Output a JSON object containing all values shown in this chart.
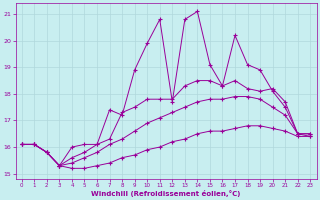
{
  "xlabel": "Windchill (Refroidissement éolien,°C)",
  "background_color": "#c8eef0",
  "grid_color": "#b0d8dc",
  "line_color": "#990099",
  "xlim": [
    -0.5,
    23.5
  ],
  "ylim": [
    14.8,
    21.4
  ],
  "xticks": [
    0,
    1,
    2,
    3,
    4,
    5,
    6,
    7,
    8,
    9,
    10,
    11,
    12,
    13,
    14,
    15,
    16,
    17,
    18,
    19,
    20,
    21,
    22,
    23
  ],
  "yticks": [
    15,
    16,
    17,
    18,
    19,
    20,
    21
  ],
  "series": [
    {
      "x": [
        0,
        1,
        2,
        3,
        4,
        5,
        6,
        7,
        8,
        9,
        10,
        11,
        12,
        13,
        14,
        15,
        16,
        17,
        18,
        19,
        20,
        21,
        22,
        23
      ],
      "y": [
        16.1,
        16.1,
        15.8,
        15.3,
        16.0,
        16.1,
        16.1,
        17.4,
        17.2,
        18.9,
        19.9,
        20.8,
        17.7,
        20.8,
        21.1,
        19.1,
        18.3,
        20.2,
        19.1,
        18.9,
        18.1,
        17.5,
        16.5,
        16.5
      ]
    },
    {
      "x": [
        0,
        1,
        2,
        3,
        4,
        5,
        6,
        7,
        8,
        9,
        10,
        11,
        12,
        13,
        14,
        15,
        16,
        17,
        18,
        19,
        20,
        21,
        22,
        23
      ],
      "y": [
        16.1,
        16.1,
        15.8,
        15.3,
        15.6,
        15.8,
        16.1,
        16.3,
        17.3,
        17.5,
        17.8,
        17.8,
        17.8,
        18.3,
        18.5,
        18.5,
        18.3,
        18.5,
        18.2,
        18.1,
        18.2,
        17.7,
        16.5,
        16.5
      ]
    },
    {
      "x": [
        0,
        1,
        2,
        3,
        4,
        5,
        6,
        7,
        8,
        9,
        10,
        11,
        12,
        13,
        14,
        15,
        16,
        17,
        18,
        19,
        20,
        21,
        22,
        23
      ],
      "y": [
        16.1,
        16.1,
        15.8,
        15.3,
        15.4,
        15.6,
        15.8,
        16.1,
        16.3,
        16.6,
        16.9,
        17.1,
        17.3,
        17.5,
        17.7,
        17.8,
        17.8,
        17.9,
        17.9,
        17.8,
        17.5,
        17.2,
        16.5,
        16.4
      ]
    },
    {
      "x": [
        0,
        1,
        2,
        3,
        4,
        5,
        6,
        7,
        8,
        9,
        10,
        11,
        12,
        13,
        14,
        15,
        16,
        17,
        18,
        19,
        20,
        21,
        22,
        23
      ],
      "y": [
        16.1,
        16.1,
        15.8,
        15.3,
        15.2,
        15.2,
        15.3,
        15.4,
        15.6,
        15.7,
        15.9,
        16.0,
        16.2,
        16.3,
        16.5,
        16.6,
        16.6,
        16.7,
        16.8,
        16.8,
        16.7,
        16.6,
        16.4,
        16.4
      ]
    }
  ]
}
